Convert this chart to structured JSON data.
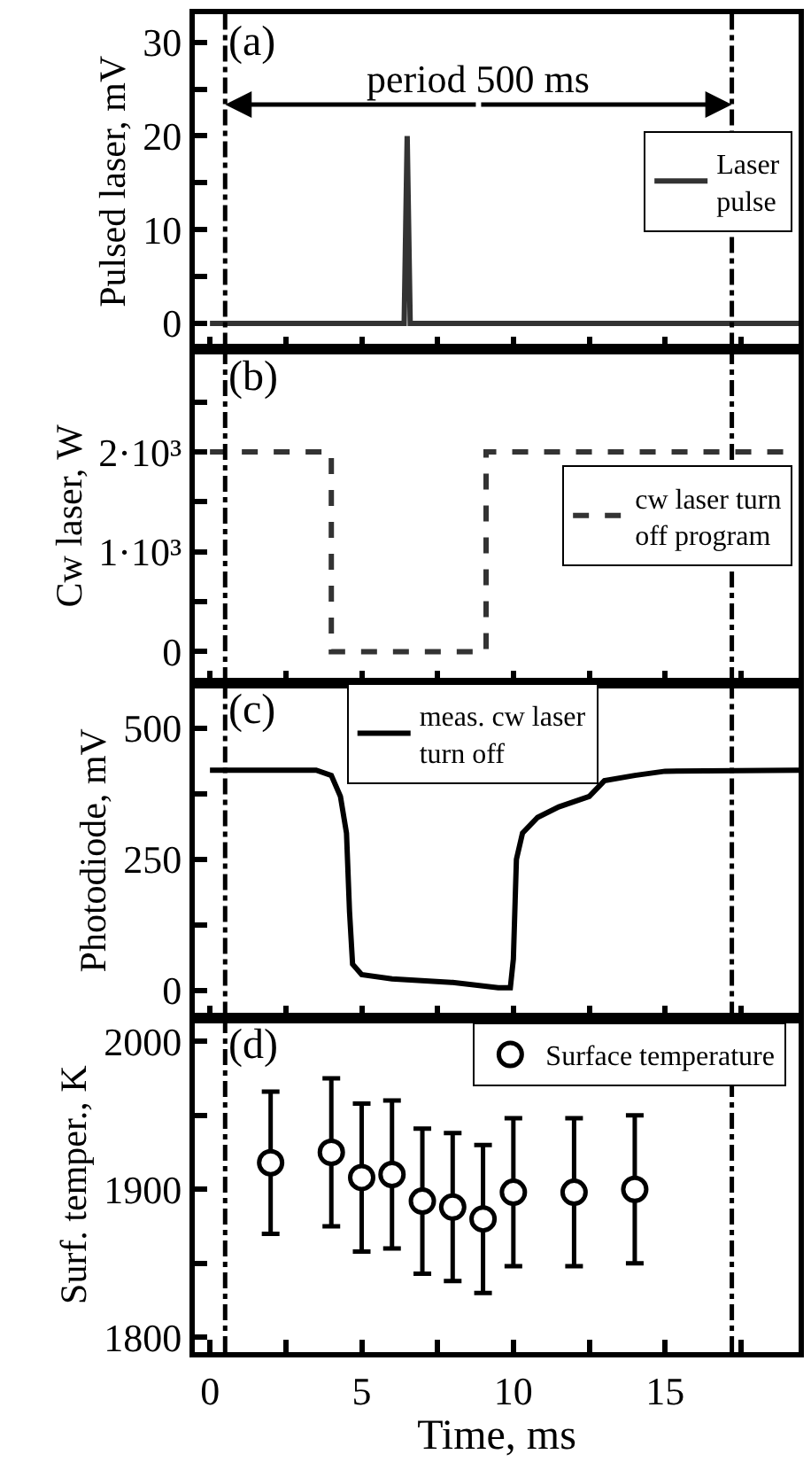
{
  "chart_data": [
    {
      "type": "line",
      "ylabel": "Pulsed laser, mV",
      "xlim": [
        -0.5,
        19.4
      ],
      "ylim": [
        -2.7,
        33
      ],
      "xticks": [
        0,
        {
          "value": 2.5,
          "label": null
        },
        5,
        {
          "value": 7.5,
          "label": null
        },
        10,
        {
          "value": 12.5,
          "label": null
        },
        15,
        {
          "value": 17.5,
          "label": null
        }
      ],
      "yticks": [
        0,
        {
          "value": 5,
          "label": null
        },
        10,
        {
          "value": 15,
          "label": null
        },
        20,
        {
          "value": 25,
          "label": null
        },
        30
      ],
      "tick_labels": "y",
      "legend": "right",
      "grid": false,
      "series": [
        {
          "name": "Laser\npulse",
          "color": "#333333",
          "line_style": "solid",
          "x": [
            0,
            6.4,
            6.5,
            6.6,
            19.4
          ],
          "values": [
            0,
            0,
            20,
            0,
            0
          ]
        }
      ],
      "ref_lines": [
        {
          "axis": "x",
          "value": 0.5,
          "color": "#000000",
          "line_style": "dashdot"
        },
        {
          "axis": "x",
          "value": 17.2,
          "color": "#000000",
          "line_style": "dashdot"
        }
      ],
      "annotations": [
        "(a)",
        "period 500 ms"
      ]
    },
    {
      "type": "line",
      "ylabel": "Cw laser, W",
      "xlim": [
        -0.5,
        19.4
      ],
      "ylim": [
        -316,
        3035
      ],
      "xticks": [
        0,
        {
          "value": 2.5,
          "label": null
        },
        5,
        {
          "value": 7.5,
          "label": null
        },
        10,
        {
          "value": 12.5,
          "label": null
        },
        15,
        {
          "value": 17.5,
          "label": null
        }
      ],
      "yticks": [
        {
          "value": 0,
          "label": "0"
        },
        {
          "value": 500,
          "label": null
        },
        {
          "value": 1000,
          "label": "1·10³"
        },
        {
          "value": 1500,
          "label": null
        },
        {
          "value": 2000,
          "label": "2·10³"
        },
        {
          "value": 2500,
          "label": null
        }
      ],
      "tick_labels": "y",
      "legend": "right",
      "grid": false,
      "series": [
        {
          "name": "cw laser turn\noff program",
          "color": "#333333",
          "line_style": "dashed",
          "x": [
            0,
            4.0,
            4.0,
            9.1,
            9.1,
            19.4
          ],
          "values": [
            2000,
            2000,
            0,
            0,
            2000,
            2000
          ]
        }
      ],
      "ref_lines": [
        {
          "axis": "x",
          "value": 0.5,
          "color": "#000000",
          "line_style": "dashdot"
        },
        {
          "axis": "x",
          "value": 17.2,
          "color": "#000000",
          "line_style": "dashdot"
        }
      ],
      "annotations": [
        "(b)"
      ]
    },
    {
      "type": "line",
      "ylabel": "Photodiode, mV",
      "xlim": [
        -0.5,
        19.4
      ],
      "ylim": [
        -52,
        586
      ],
      "xticks": [
        0,
        {
          "value": 2.5,
          "label": null
        },
        5,
        {
          "value": 7.5,
          "label": null
        },
        10,
        {
          "value": 12.5,
          "label": null
        },
        15,
        {
          "value": 17.5,
          "label": null
        }
      ],
      "yticks": [
        0,
        {
          "value": 125,
          "label": null
        },
        250,
        {
          "value": 375,
          "label": null
        },
        500
      ],
      "tick_labels": "y",
      "legend": "top",
      "grid": false,
      "series": [
        {
          "name": "meas. cw laser\nturn off",
          "color": "#000000",
          "line_style": "solid",
          "x": [
            0,
            3.5,
            4.0,
            4.3,
            4.5,
            4.6,
            4.7,
            5.0,
            6,
            8,
            9.5,
            9.9,
            10.0,
            10.1,
            10.3,
            10.8,
            11.5,
            12.5,
            13,
            14,
            15,
            19.4
          ],
          "values": [
            420,
            420,
            410,
            370,
            300,
            150,
            50,
            30,
            22,
            15,
            5,
            5,
            60,
            250,
            300,
            330,
            350,
            370,
            400,
            410,
            418,
            420
          ]
        }
      ],
      "ref_lines": [
        {
          "axis": "x",
          "value": 0.5,
          "color": "#000000",
          "line_style": "dashdot"
        },
        {
          "axis": "x",
          "value": 17.2,
          "color": "#000000",
          "line_style": "dashdot"
        }
      ],
      "annotations": [
        "(c)"
      ]
    },
    {
      "type": "scatter",
      "xlabel": "Time, ms",
      "ylabel": "Surf. temper., K",
      "xlim": [
        -0.5,
        19.4
      ],
      "ylim": [
        1790,
        2016
      ],
      "xticks": [
        0,
        {
          "value": 2.5,
          "label": null
        },
        5,
        {
          "value": 7.5,
          "label": null
        },
        10,
        {
          "value": 12.5,
          "label": null
        },
        15,
        {
          "value": 17.5,
          "label": null
        }
      ],
      "yticks": [
        1800,
        {
          "value": 1850,
          "label": null
        },
        1900,
        {
          "value": 1950,
          "label": null
        },
        2000
      ],
      "legend": "top right",
      "grid": false,
      "marker": "circle",
      "series": [
        {
          "name": "Surface temperature",
          "color": "#000000",
          "x": [
            2,
            4,
            5,
            6,
            7,
            8,
            9,
            10,
            12,
            14
          ],
          "values": [
            1918,
            1925,
            1908,
            1910,
            1892,
            1888,
            1880,
            1898,
            1898,
            1900
          ],
          "errors": [
            48,
            50,
            50,
            50,
            49,
            50,
            50,
            50,
            50,
            50
          ]
        }
      ],
      "ref_lines": [
        {
          "axis": "x",
          "value": 0.5,
          "color": "#000000",
          "line_style": "dashdot"
        },
        {
          "axis": "x",
          "value": 17.2,
          "color": "#000000",
          "line_style": "dashdot"
        }
      ],
      "annotations": [
        "(d)"
      ]
    }
  ]
}
